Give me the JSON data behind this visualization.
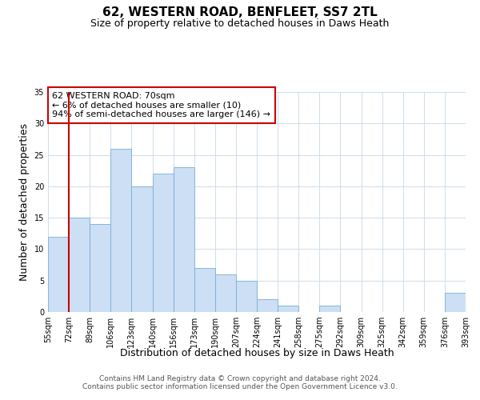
{
  "title": "62, WESTERN ROAD, BENFLEET, SS7 2TL",
  "subtitle": "Size of property relative to detached houses in Daws Heath",
  "xlabel": "Distribution of detached houses by size in Daws Heath",
  "ylabel": "Number of detached properties",
  "bin_labels": [
    "55sqm",
    "72sqm",
    "89sqm",
    "106sqm",
    "123sqm",
    "140sqm",
    "156sqm",
    "173sqm",
    "190sqm",
    "207sqm",
    "224sqm",
    "241sqm",
    "258sqm",
    "275sqm",
    "292sqm",
    "309sqm",
    "325sqm",
    "342sqm",
    "359sqm",
    "376sqm",
    "393sqm"
  ],
  "bar_values": [
    12,
    15,
    14,
    26,
    20,
    22,
    23,
    7,
    6,
    5,
    2,
    1,
    0,
    1,
    0,
    0,
    0,
    0,
    0,
    3
  ],
  "bar_color": "#ccdff5",
  "bar_edge_color": "#7aadd4",
  "reference_line_color": "#cc0000",
  "annotation_box_text": "62 WESTERN ROAD: 70sqm\n← 6% of detached houses are smaller (10)\n94% of semi-detached houses are larger (146) →",
  "annotation_box_edge_color": "#cc0000",
  "ylim": [
    0,
    35
  ],
  "yticks": [
    0,
    5,
    10,
    15,
    20,
    25,
    30,
    35
  ],
  "footer_line1": "Contains HM Land Registry data © Crown copyright and database right 2024.",
  "footer_line2": "Contains public sector information licensed under the Open Government Licence v3.0.",
  "title_fontsize": 11,
  "subtitle_fontsize": 9,
  "axis_label_fontsize": 9,
  "tick_fontsize": 7,
  "annotation_fontsize": 8,
  "footer_fontsize": 6.5
}
